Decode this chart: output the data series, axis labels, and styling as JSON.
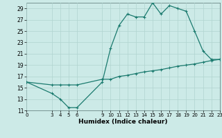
{
  "title": "",
  "xlabel": "Humidex (Indice chaleur)",
  "ylabel": "",
  "bg_color": "#cceae7",
  "grid_color": "#b0d4d0",
  "line_color": "#1a7a6e",
  "xlim": [
    0,
    23
  ],
  "ylim": [
    11,
    30
  ],
  "yticks": [
    11,
    13,
    15,
    17,
    19,
    21,
    23,
    25,
    27,
    29
  ],
  "xticks": [
    0,
    3,
    4,
    5,
    6,
    9,
    10,
    11,
    12,
    13,
    14,
    15,
    16,
    17,
    18,
    19,
    20,
    21,
    22,
    23
  ],
  "upper_x": [
    0,
    3,
    4,
    5,
    6,
    9,
    10,
    11,
    12,
    13,
    14,
    15,
    16,
    17,
    18,
    19,
    20,
    21,
    22,
    23
  ],
  "upper_y": [
    16,
    14,
    13,
    11.5,
    11.5,
    16,
    22,
    26,
    28,
    27.5,
    27.5,
    30,
    28,
    29.5,
    29,
    28.5,
    25,
    21.5,
    20,
    20
  ],
  "lower_x": [
    0,
    3,
    4,
    5,
    6,
    9,
    10,
    11,
    12,
    13,
    14,
    15,
    16,
    17,
    18,
    19,
    20,
    21,
    22,
    23
  ],
  "lower_y": [
    16,
    15.5,
    15.5,
    15.5,
    15.5,
    16.5,
    16.5,
    17,
    17.2,
    17.5,
    17.8,
    18,
    18.2,
    18.5,
    18.8,
    19,
    19.2,
    19.5,
    19.8,
    20
  ],
  "marker": "+",
  "marker_size": 3.5,
  "line_width": 0.9
}
